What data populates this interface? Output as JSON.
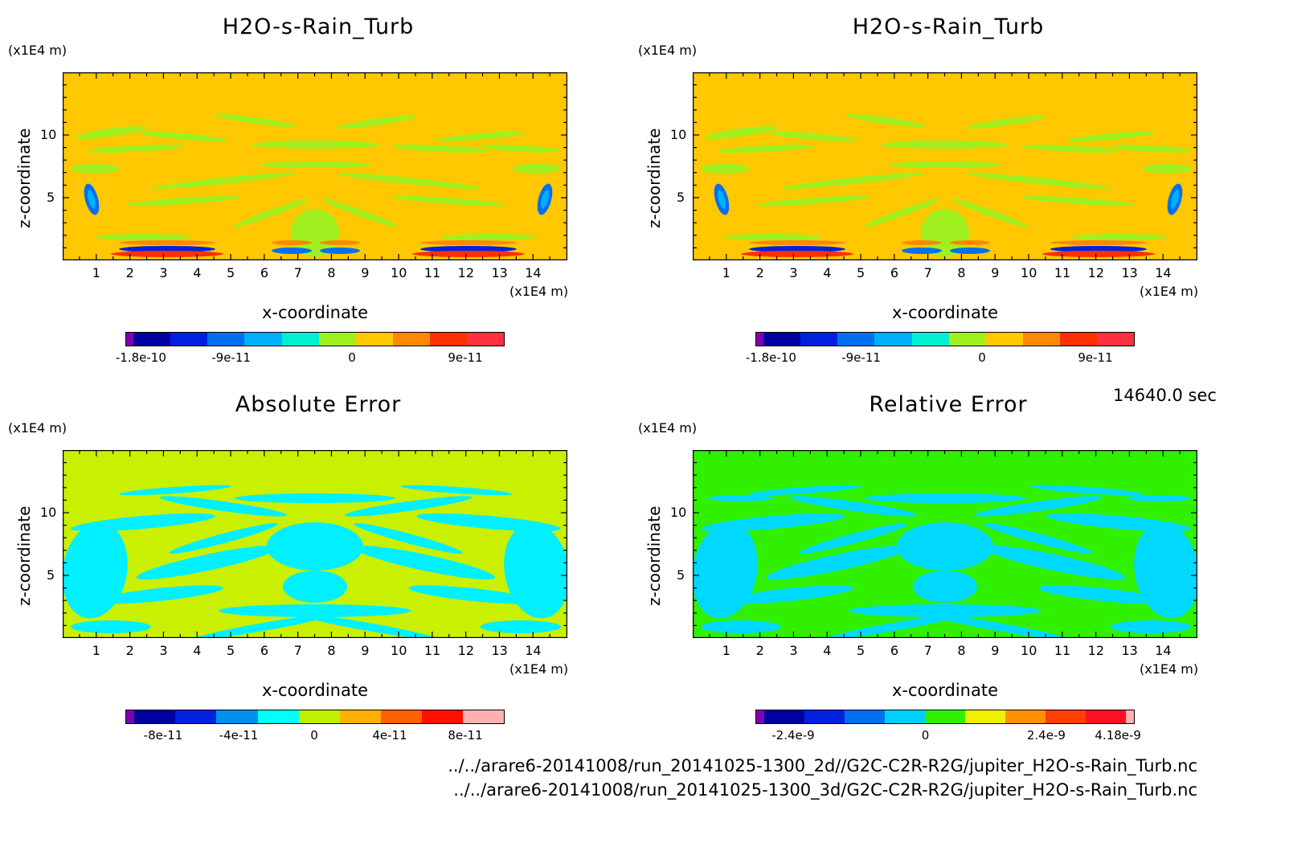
{
  "time_label": "14640.0 sec",
  "files": [
    "../../arare6-20141008/run_20141025-1300_2d//G2C-C2R-R2G/jupiter_H2O-s-Rain_Turb.nc",
    "../../arare6-20141008/run_20141025-1300_3d/G2C-C2R-R2G/jupiter_H2O-s-Rain_Turb.nc"
  ],
  "chart_data": [
    {
      "type": "heatmap",
      "title": "H2O-s-Rain_Turb",
      "xlabel": "x-coordinate",
      "ylabel": "z-coordinate",
      "x_unit": "(x1E4 m)",
      "y_unit": "(x1E4 m)",
      "xlim": [
        0,
        15
      ],
      "ylim": [
        0,
        15
      ],
      "x_ticks": [
        "1",
        "2",
        "3",
        "4",
        "5",
        "6",
        "7",
        "8",
        "9",
        "10",
        "11",
        "12",
        "13",
        "14"
      ],
      "y_ticks": [
        "5",
        "10"
      ],
      "colorbar": {
        "colors": [
          "#8000b0",
          "#0000a0",
          "#0020e0",
          "#0070f0",
          "#00b0ff",
          "#00f0d0",
          "#a0f020",
          "#ffc800",
          "#ff8800",
          "#ff3000",
          "#ff3040"
        ],
        "tick_labels": [
          "-1.8e-10",
          "-9e-11",
          "0",
          "9e-11"
        ]
      }
    },
    {
      "type": "heatmap",
      "title": "H2O-s-Rain_Turb",
      "xlabel": "x-coordinate",
      "ylabel": "z-coordinate",
      "x_unit": "(x1E4 m)",
      "y_unit": "(x1E4 m)",
      "xlim": [
        0,
        15
      ],
      "ylim": [
        0,
        15
      ],
      "x_ticks": [
        "1",
        "2",
        "3",
        "4",
        "5",
        "6",
        "7",
        "8",
        "9",
        "10",
        "11",
        "12",
        "13",
        "14"
      ],
      "y_ticks": [
        "5",
        "10"
      ],
      "colorbar": {
        "colors": [
          "#8000b0",
          "#0000a0",
          "#0020e0",
          "#0070f0",
          "#00b0ff",
          "#00f0d0",
          "#a0f020",
          "#ffc800",
          "#ff8800",
          "#ff3000",
          "#ff3040"
        ],
        "tick_labels": [
          "-1.8e-10",
          "-9e-11",
          "0",
          "9e-11"
        ]
      }
    },
    {
      "type": "heatmap",
      "title": "Absolute Error",
      "xlabel": "x-coordinate",
      "ylabel": "z-coordinate",
      "x_unit": "(x1E4 m)",
      "y_unit": "(x1E4 m)",
      "xlim": [
        0,
        15
      ],
      "ylim": [
        0,
        15
      ],
      "x_ticks": [
        "1",
        "2",
        "3",
        "4",
        "5",
        "6",
        "7",
        "8",
        "9",
        "10",
        "11",
        "12",
        "13",
        "14"
      ],
      "y_ticks": [
        "5",
        "10"
      ],
      "colorbar": {
        "colors": [
          "#8000b0",
          "#0000a0",
          "#0020e0",
          "#0090f0",
          "#00ffff",
          "#c0f000",
          "#ffb000",
          "#ff6000",
          "#ff1000",
          "#ffb0b0"
        ],
        "tick_labels": [
          "-8e-11",
          "-4e-11",
          "0",
          "4e-11",
          "8e-11"
        ]
      }
    },
    {
      "type": "heatmap",
      "title": "Relative Error",
      "xlabel": "x-coordinate",
      "ylabel": "z-coordinate",
      "x_unit": "(x1E4 m)",
      "y_unit": "(x1E4 m)",
      "xlim": [
        0,
        15
      ],
      "ylim": [
        0,
        15
      ],
      "x_ticks": [
        "1",
        "2",
        "3",
        "4",
        "5",
        "6",
        "7",
        "8",
        "9",
        "10",
        "11",
        "12",
        "13",
        "14"
      ],
      "y_ticks": [
        "5",
        "10"
      ],
      "colorbar": {
        "colors": [
          "#8000b0",
          "#0000a0",
          "#0020e0",
          "#0070f0",
          "#00d0ff",
          "#30f000",
          "#f0f000",
          "#ff9000",
          "#ff4000",
          "#ff1020",
          "#ffb0b0"
        ],
        "tick_labels": [
          "-2.4e-9",
          "0",
          "2.4e-9",
          "4.18e-9"
        ]
      }
    }
  ]
}
